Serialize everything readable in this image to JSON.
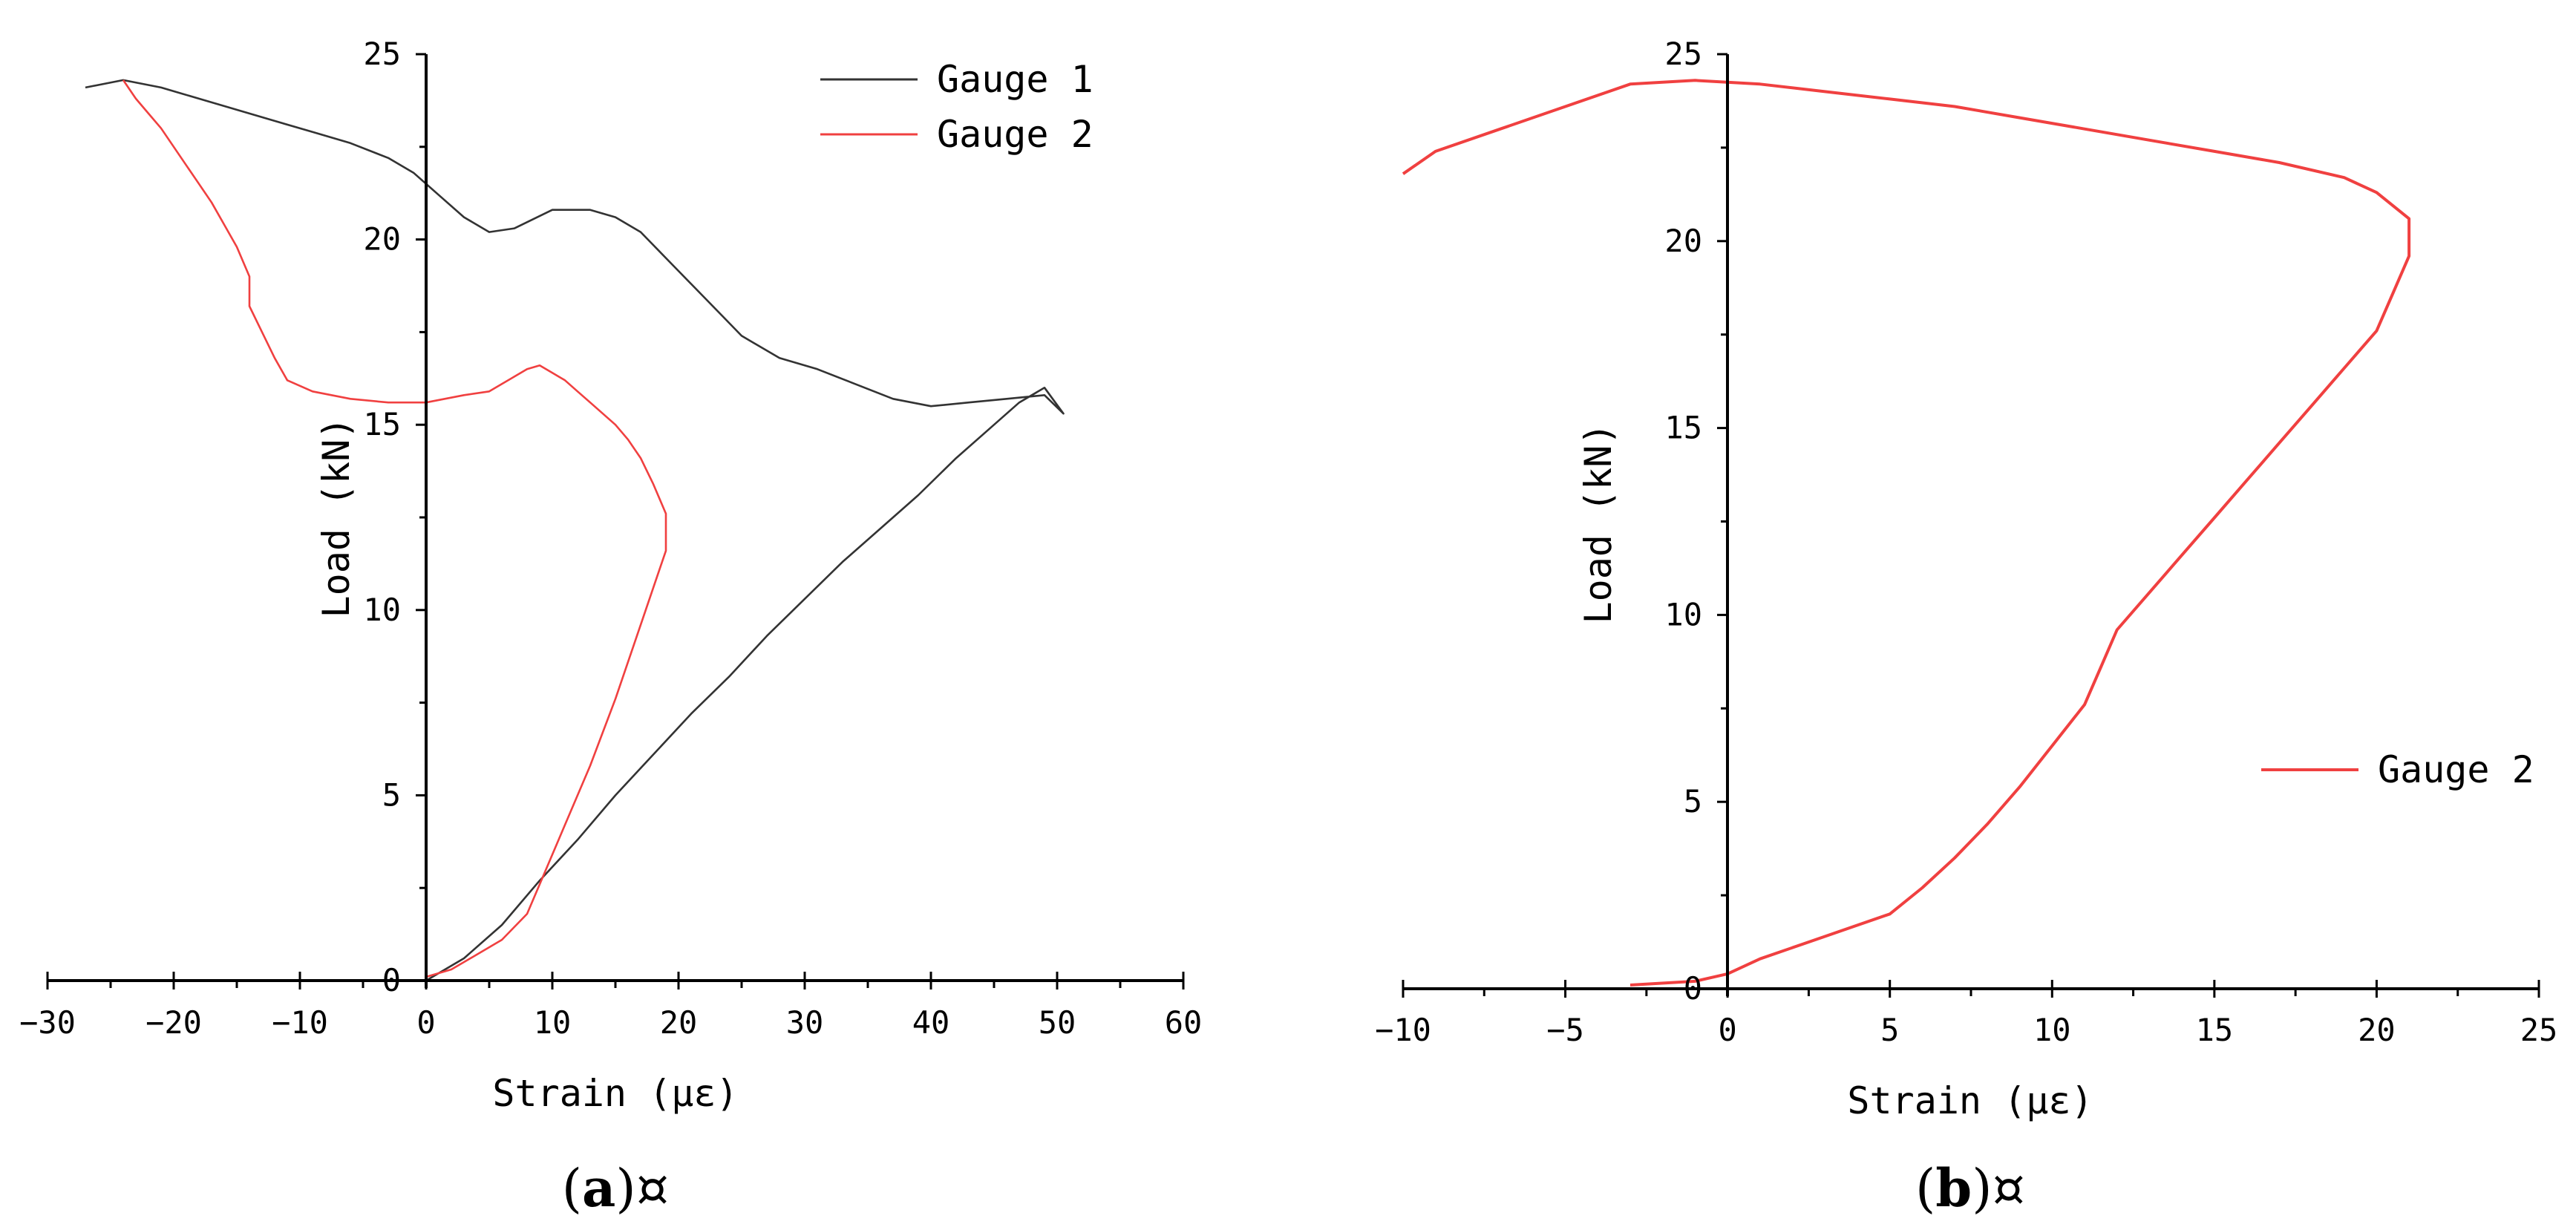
{
  "chart_data": [
    {
      "id": "a",
      "type": "line",
      "caption_letter": "a",
      "caption_suffix": "¤",
      "xlabel": "Strain (με)",
      "ylabel": "Load (kN)",
      "xlim": [
        -30,
        60
      ],
      "ylim": [
        0,
        25
      ],
      "xticks": [
        -30,
        -20,
        -10,
        0,
        10,
        20,
        30,
        40,
        50,
        60
      ],
      "yticks": [
        0,
        5,
        10,
        15,
        20,
        25
      ],
      "xtick_labels": [
        "−30",
        "−20",
        "−10",
        "0",
        "10",
        "20",
        "30",
        "40",
        "50",
        "60"
      ],
      "ytick_labels": [
        "0",
        "5",
        "10",
        "15",
        "20",
        "25"
      ],
      "legend_position": "top-right",
      "series": [
        {
          "name": "Gauge 1",
          "color": "#333333",
          "x": [
            0,
            3,
            6,
            9,
            12,
            15,
            18,
            21,
            24,
            27,
            30,
            33,
            36,
            39,
            42,
            45,
            47,
            49,
            50.5,
            49,
            46,
            43,
            40,
            37,
            34,
            31,
            28,
            25,
            23,
            21,
            19,
            17,
            15,
            13,
            10,
            7,
            5,
            3,
            1,
            -1,
            -3,
            -6,
            -9,
            -12,
            -15,
            -18,
            -21,
            -24,
            -27
          ],
          "y": [
            0,
            0.6,
            1.5,
            2.7,
            3.8,
            5,
            6.1,
            7.2,
            8.2,
            9.3,
            10.3,
            11.3,
            12.2,
            13.1,
            14.1,
            15,
            15.6,
            16,
            15.3,
            15.8,
            15.7,
            15.6,
            15.5,
            15.7,
            16.1,
            16.5,
            16.8,
            17.4,
            18.1,
            18.8,
            19.5,
            20.2,
            20.6,
            20.8,
            20.8,
            20.3,
            20.2,
            20.6,
            21.2,
            21.8,
            22.2,
            22.6,
            22.9,
            23.2,
            23.5,
            23.8,
            24.1,
            24.3,
            24.1
          ]
        },
        {
          "name": "Gauge 2",
          "color": "#f04040",
          "x": [
            0,
            2,
            4,
            6,
            8,
            9,
            10,
            11,
            12,
            13,
            14,
            15,
            16,
            17,
            18,
            19,
            19,
            18,
            17,
            16,
            15,
            14,
            13,
            12,
            11,
            10,
            9,
            8,
            7,
            6,
            5,
            3,
            0,
            -3,
            -6,
            -9,
            -11,
            -12,
            -13,
            -14,
            -14,
            -15,
            -16,
            -17,
            -18,
            -19,
            -20,
            -21,
            -22,
            -23,
            -24
          ],
          "y": [
            0.1,
            0.3,
            0.7,
            1.1,
            1.8,
            2.6,
            3.4,
            4.2,
            5,
            5.8,
            6.7,
            7.6,
            8.6,
            9.6,
            10.6,
            11.6,
            12.6,
            13.4,
            14.1,
            14.6,
            15,
            15.3,
            15.6,
            15.9,
            16.2,
            16.4,
            16.6,
            16.5,
            16.3,
            16.1,
            15.9,
            15.8,
            15.6,
            15.6,
            15.7,
            15.9,
            16.2,
            16.8,
            17.5,
            18.2,
            19,
            19.8,
            20.4,
            21,
            21.5,
            22,
            22.5,
            23,
            23.4,
            23.8,
            24.3
          ]
        }
      ]
    },
    {
      "id": "b",
      "type": "line",
      "caption_letter": "b",
      "caption_suffix": "¤",
      "xlabel": "Strain (με)",
      "ylabel": "Load (kN)",
      "xlim": [
        -10,
        25
      ],
      "ylim": [
        0,
        25
      ],
      "xticks": [
        -10,
        -5,
        0,
        5,
        10,
        15,
        20,
        25
      ],
      "yticks": [
        0,
        5,
        10,
        15,
        20,
        25
      ],
      "xtick_labels": [
        "−10",
        "−5",
        "0",
        "5",
        "10",
        "15",
        "20",
        "25"
      ],
      "ytick_labels": [
        "0",
        "5",
        "10",
        "15",
        "20",
        "25"
      ],
      "legend_position": "right",
      "series": [
        {
          "name": "Gauge 2",
          "color": "#f04040",
          "x": [
            -3,
            -1,
            0,
            1,
            3,
            5,
            6,
            7,
            8,
            9,
            10,
            11,
            11.5,
            12,
            13,
            14,
            15,
            16,
            17,
            18,
            19,
            20,
            20.5,
            21,
            21,
            20,
            19,
            17,
            15,
            13,
            11,
            9,
            7,
            5,
            3,
            1,
            -1,
            -3,
            -5,
            -7,
            -9,
            -10
          ],
          "y": [
            0.1,
            0.2,
            0.4,
            0.8,
            1.4,
            2,
            2.7,
            3.5,
            4.4,
            5.4,
            6.5,
            7.6,
            8.6,
            9.6,
            10.6,
            11.6,
            12.6,
            13.6,
            14.6,
            15.6,
            16.6,
            17.6,
            18.6,
            19.6,
            20.6,
            21.3,
            21.7,
            22.1,
            22.4,
            22.7,
            23,
            23.3,
            23.6,
            23.8,
            24,
            24.2,
            24.3,
            24.2,
            23.6,
            23,
            22.4,
            21.8
          ]
        }
      ]
    }
  ]
}
